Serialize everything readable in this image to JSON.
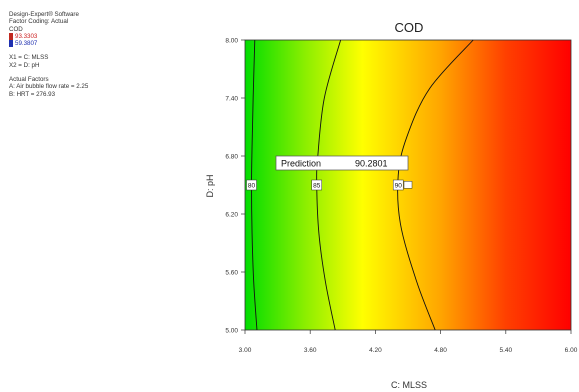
{
  "info": {
    "software": "Design-Expert® Software",
    "factor_coding": "Factor Coding: Actual",
    "response": "COD",
    "legend_high": "93.3303",
    "legend_low": "59.3807",
    "legend_high_color": "#cc2020",
    "legend_low_color": "#1e2fb0",
    "x1": "X1 = C: MLSS",
    "x2": "X2 = D: pH",
    "actual_factors_title": "Actual Factors",
    "factor_a": "A: Air bubble flow rate = 2.25",
    "factor_b": "B: HRT = 276.93"
  },
  "chart_data": {
    "type": "contour",
    "title": "COD",
    "xlabel": "C: MLSS",
    "ylabel": "D: pH",
    "xlim": [
      3.0,
      6.0
    ],
    "ylim": [
      5.0,
      8.0
    ],
    "x_ticks": [
      "3.00",
      "3.60",
      "4.20",
      "4.80",
      "5.40",
      "6.00"
    ],
    "y_ticks": [
      "5.00",
      "5.60",
      "6.20",
      "6.80",
      "7.40",
      "8.00"
    ],
    "grid": false,
    "contours": [
      {
        "level": "80",
        "points": [
          [
            3.09,
            8.0
          ],
          [
            3.075,
            7.4
          ],
          [
            3.065,
            6.9
          ],
          [
            3.06,
            6.5
          ],
          [
            3.065,
            6.0
          ],
          [
            3.08,
            5.5
          ],
          [
            3.11,
            5.0
          ]
        ]
      },
      {
        "level": "85",
        "points": [
          [
            3.88,
            8.0
          ],
          [
            3.73,
            7.4
          ],
          [
            3.67,
            6.8
          ],
          [
            3.66,
            6.5
          ],
          [
            3.68,
            6.0
          ],
          [
            3.74,
            5.5
          ],
          [
            3.83,
            5.0
          ]
        ]
      },
      {
        "level": "90",
        "points": [
          [
            5.1,
            8.0
          ],
          [
            4.7,
            7.5
          ],
          [
            4.49,
            7.0
          ],
          [
            4.41,
            6.6
          ],
          [
            4.43,
            6.1
          ],
          [
            4.58,
            5.5
          ],
          [
            4.75,
            5.0
          ]
        ]
      }
    ],
    "prediction": {
      "label": "Prediction",
      "value": "90.2801",
      "x": 4.5,
      "y": 6.6
    },
    "colors": {
      "low": "#00e000",
      "mid": "#ffff00",
      "orange": "#ff9900",
      "high": "#ff0000"
    }
  }
}
